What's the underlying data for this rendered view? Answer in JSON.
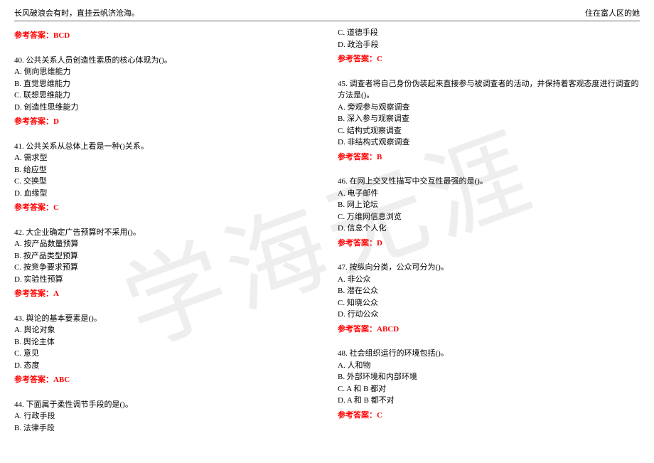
{
  "header": {
    "left": "长风破浪会有时，直挂云帆济沧海。",
    "right": "住在富人区的她"
  },
  "watermark": "学海无涯",
  "colors": {
    "answer": "#ff0000",
    "text": "#000000",
    "watermark": "#eeeeee",
    "rule": "#666666",
    "bg": "#ffffff"
  },
  "left_col": {
    "ans_prev": "参考答案：BCD",
    "q40": {
      "stem": "40. 公共关系人员创造性素质的核心体现为()。",
      "a": "A. 侧向思维能力",
      "b": "B. 直觉思维能力",
      "c": "C. 联想思维能力",
      "d": "D. 创造性思维能力",
      "ans": "参考答案：D"
    },
    "q41": {
      "stem": "41. 公共关系从总体上看是一种()关系。",
      "a": "A. 需求型",
      "b": "B. 给应型",
      "c": "C. 交换型",
      "d": "D. 血缘型",
      "ans": "参考答案：C"
    },
    "q42": {
      "stem": "42. 大企业确定广告预算时不采用()。",
      "a": "A. 按产品数量预算",
      "b": "B. 按产品类型预算",
      "c": "C. 按竞争要求预算",
      "d": "D. 实验性预算",
      "ans": "参考答案：A"
    },
    "q43": {
      "stem": "43. 舆论的基本要素是()。",
      "a": "A. 舆论对象",
      "b": "B. 舆论主体",
      "c": "C. 意见",
      "d": "D. 态度",
      "ans": "参考答案：ABC"
    },
    "q44": {
      "stem": "44. 下面属于柔性调节手段的是()。",
      "a": "A. 行政手段",
      "b": "B. 法律手段"
    }
  },
  "right_col": {
    "q44cont": {
      "c": "C. 道德手段",
      "d": "D. 政治手段",
      "ans": "参考答案：C"
    },
    "q45": {
      "stem": "45. 调查者将自己身份伪装起来直接参与被调查者的活动，并保持着客观态度进行调查的方法是()。",
      "a": "A. 旁观参与观察调查",
      "b": "B. 深入参与观察调查",
      "c": "C. 结构式观察调查",
      "d": "D. 非结构式观察调查",
      "ans": "参考答案：B"
    },
    "q46": {
      "stem": "46. 在网上交叉性描写中交互性最强的是()。",
      "a": "A. 电子邮件",
      "b": "B. 网上论坛",
      "c": "C. 万维网信息浏览",
      "d": "D. 信息个人化",
      "ans": "参考答案：D"
    },
    "q47": {
      "stem": "47. 按纵向分类，公众可分为()。",
      "a": "A. 非公众",
      "b": "B. 潜在公众",
      "c": "C. 知晓公众",
      "d": "D. 行动公众",
      "ans": "参考答案：ABCD"
    },
    "q48": {
      "stem": "48. 社会组织运行的环境包括()。",
      "a": "A. 人和物",
      "b": "B. 外部环境和内部环境",
      "c": "C. A 和 B 都对",
      "d": "D. A 和 B 都不对",
      "ans": "参考答案：C"
    }
  }
}
